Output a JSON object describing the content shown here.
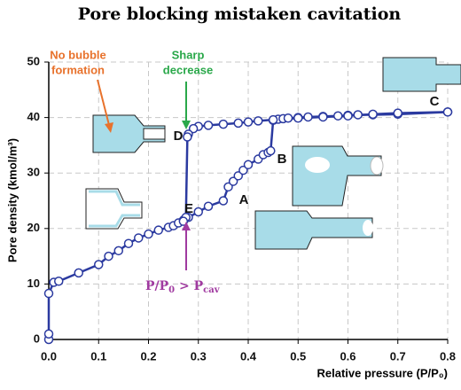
{
  "chart_data": {
    "type": "line",
    "title": "Pore blocking mistaken cavitation",
    "x_label": "Relative pressure (P/P₀)",
    "y_label": "Pore density (kmol/m³)",
    "xlim": [
      0,
      0.8
    ],
    "ylim": [
      0,
      50
    ],
    "xticks": [
      {
        "value": 0,
        "label": "0.0"
      },
      0.1,
      0.2,
      0.3,
      0.4,
      0.5,
      0.6,
      0.7,
      0.8
    ],
    "yticks": [
      0,
      10,
      20,
      30,
      40,
      50
    ],
    "grid": true,
    "series": [
      {
        "color": "#2b3aa0",
        "x": [
          0,
          0,
          0,
          0.01,
          0.02,
          0.06,
          0.1,
          0.12,
          0.14,
          0.16,
          0.18,
          0.2,
          0.22,
          0.24,
          0.25,
          0.26,
          0.27,
          0.28,
          0.3,
          0.32,
          0.35,
          0.36,
          0.37,
          0.38,
          0.39,
          0.4,
          0.42,
          0.43,
          0.44,
          0.445,
          0.45,
          0.46,
          0.47,
          0.48,
          0.5,
          0.52,
          0.55,
          0.58,
          0.6,
          0.62,
          0.65,
          0.7,
          0.8
        ],
        "values": [
          0,
          1,
          8.3,
          10.3,
          10.5,
          12,
          13.5,
          15,
          16,
          17.3,
          18.3,
          19,
          19.7,
          20.2,
          20.5,
          21,
          21.5,
          22,
          23,
          24,
          25,
          27.5,
          28.5,
          29.5,
          30.5,
          31.5,
          32.5,
          33.3,
          33.7,
          34,
          39.5,
          39.7,
          39.8,
          39.9,
          40,
          40.1,
          40.2,
          40.3,
          40.4,
          40.5,
          40.5,
          40.6,
          41
        ]
      },
      {
        "color": "#2b3aa0",
        "x": [
          0.8,
          0.7,
          0.65,
          0.6,
          0.55,
          0.5,
          0.45,
          0.42,
          0.4,
          0.38,
          0.35,
          0.32,
          0.3,
          0.29,
          0.28,
          0.278,
          0.275,
          0.27
        ],
        "values": [
          41,
          40.8,
          40.6,
          40.3,
          40.1,
          39.9,
          39.6,
          39.4,
          39.2,
          39,
          38.8,
          38.6,
          38.4,
          38,
          37,
          36.5,
          22,
          21.3
        ]
      }
    ],
    "point_labels": [
      "A",
      "B",
      "C",
      "D",
      "E"
    ],
    "notes": [
      [
        "No bubble",
        "formation"
      ],
      [
        "Sharp",
        "decrease"
      ]
    ],
    "cavitation_label": [
      "P/P",
      "0",
      " > P",
      "cav"
    ]
  }
}
